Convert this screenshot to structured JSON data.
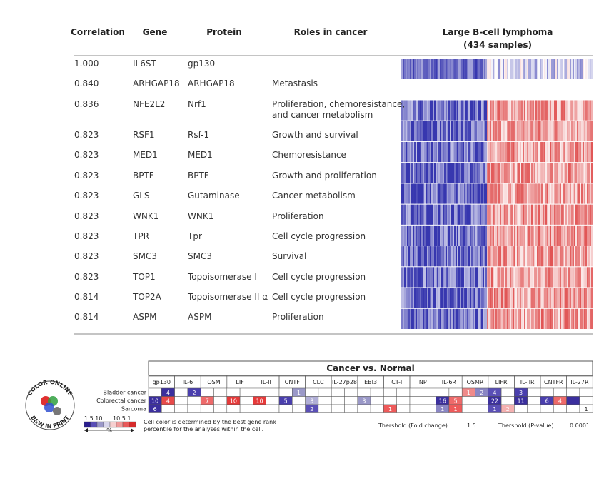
{
  "table": {
    "headers": [
      "Correlation",
      "Gene",
      "Protein",
      "Roles in cancer"
    ],
    "heatmap_title": "Large B-cell lymphoma",
    "heatmap_subtitle": "(434 samples)",
    "rows": [
      [
        "1.000",
        "IL6ST",
        "gp130",
        ""
      ],
      [
        "0.840",
        "ARHGAP18",
        "ARHGAP18",
        "Metastasis"
      ],
      [
        "0.836",
        "NFE2L2",
        "Nrf1",
        "Proliferation, chemoresistance,|and cancer metabolism"
      ],
      [
        "0.823",
        "RSF1",
        "Rsf-1",
        "Growth and survival"
      ],
      [
        "0.823",
        "MED1",
        "MED1",
        "Chemoresistance"
      ],
      [
        "0.823",
        "BPTF",
        "BPTF",
        "Growth and proliferation"
      ],
      [
        "0.823",
        "GLS",
        "Gutaminase",
        "Cancer metabolism"
      ],
      [
        "0.823",
        "WNK1",
        "WNK1",
        "Proliferation"
      ],
      [
        "0.823",
        "TPR",
        "Tpr",
        "Cell cycle progression"
      ],
      [
        "0.823",
        "SMC3",
        "SMC3",
        "Survival"
      ],
      [
        "0.823",
        "TOP1",
        "Topoisomerase I",
        "Cell cycle progression"
      ],
      [
        "0.814",
        "TOP2A",
        "Topoisomerase II α",
        "Cell cycle progression"
      ],
      [
        "0.814",
        "ASPM",
        "ASPM",
        "Proliferation"
      ]
    ]
  },
  "comparison": {
    "title": "Cancer vs. Normal",
    "columns": [
      "gp130",
      "IL-6",
      "OSM",
      "LIF",
      "IL-II",
      "CNTF",
      "CLC",
      "IL-27p28",
      "EBI3",
      "CT-I",
      "NP",
      "IL-6R",
      "OSMR",
      "LIFR",
      "IL-IIR",
      "CNTFR",
      "IL-27R"
    ],
    "rows": [
      {
        "label": "Bladder cancer",
        "cells": [
          null,
          {
            "n": 4,
            "color": "#3b2f9e"
          },
          null,
          {
            "n": 2,
            "color": "#4a3fae"
          },
          null,
          null,
          null,
          null,
          null,
          null,
          null,
          {
            "n": 1,
            "color": "#9a98c8"
          },
          null,
          null,
          null,
          null,
          null,
          null,
          null,
          null,
          null,
          null,
          null,
          null,
          {
            "n": 1,
            "color": "#f08a8a"
          },
          {
            "n": 2,
            "color": "#8a86c4"
          },
          {
            "n": 4,
            "color": "#5a4fb6"
          },
          null,
          {
            "n": 3,
            "color": "#4a3fae"
          },
          null,
          null,
          null,
          null,
          null
        ]
      },
      {
        "label": "Colorectal cancer",
        "cells": [
          {
            "n": 10,
            "color": "#3b2f9e"
          },
          {
            "n": 4,
            "color": "#e84a4a"
          },
          null,
          null,
          {
            "n": 7,
            "color": "#ee6a6a"
          },
          null,
          {
            "n": 10,
            "color": "#e63a3a"
          },
          null,
          {
            "n": 10,
            "color": "#e63a3a"
          },
          null,
          {
            "n": 5,
            "color": "#4a3fae"
          },
          null,
          {
            "n": 3,
            "color": "#b0aed6"
          },
          null,
          null,
          null,
          {
            "n": 3,
            "color": "#9a98c8"
          },
          null,
          null,
          null,
          null,
          null,
          {
            "n": 16,
            "color": "#3b2f9e"
          },
          {
            "n": 5,
            "color": "#ee6a6a"
          },
          null,
          null,
          {
            "n": 22,
            "color": "#3b2f9e"
          },
          null,
          {
            "n": 11,
            "color": "#3b2f9e"
          },
          null,
          {
            "n": 6,
            "color": "#4a3fae"
          },
          {
            "n": 4,
            "color": "#ee6a6a"
          },
          {
            "color": "#3b2f9e"
          },
          null
        ]
      },
      {
        "label": "Sarcoma",
        "cells": [
          {
            "n": 6,
            "color": "#3b2f9e"
          },
          null,
          null,
          null,
          null,
          null,
          null,
          null,
          null,
          null,
          null,
          null,
          {
            "n": 2,
            "color": "#5a4fb6"
          },
          null,
          null,
          null,
          null,
          null,
          {
            "n": 1,
            "color": "#ee5a5a"
          },
          null,
          null,
          null,
          {
            "n": 1,
            "color": "#8a86c4"
          },
          {
            "n": 1,
            "color": "#ee5a5a"
          },
          null,
          null,
          {
            "n": 1,
            "color": "#5a4fb6"
          },
          {
            "n": 2,
            "color": "#f4b0b0"
          },
          null,
          null,
          null,
          null,
          null,
          {
            "n": 1,
            "color": "#ffffff"
          }
        ]
      }
    ]
  },
  "legend": {
    "left": "1 5 10",
    "right": "10 5 1",
    "unit": "%"
  },
  "note": [
    "Cell color is determined by the best gene rank",
    "percentile for the analyses within the cell."
  ],
  "thresholds": {
    "fold_label": "Thershold (Fold change)",
    "fold": "1.5",
    "p_label": "Thershold (P-value):",
    "p": "0.0001"
  },
  "badge": {
    "top": "COLOR ONLINE",
    "bottom": "B&W IN PRINT"
  }
}
